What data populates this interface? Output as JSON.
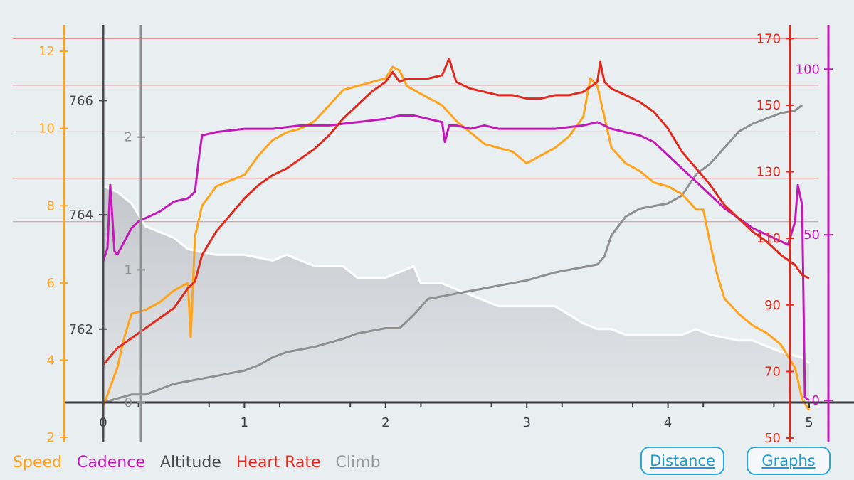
{
  "colors": {
    "speed": "#ffa31a",
    "cadence": "#c219b8",
    "altitude": "#4a4a4e",
    "heart_rate": "#e02a1e",
    "climb": "#8f8f8f",
    "background": "#e9eef1"
  },
  "legend": {
    "speed": "Speed",
    "cadence": "Cadence",
    "altitude": "Altitude",
    "heart_rate": "Heart Rate",
    "climb": "Climb"
  },
  "buttons": {
    "distance": "Distance",
    "graphs": "Graphs"
  },
  "chart_data": {
    "type": "line",
    "title": "",
    "xlabel": "",
    "x_range": [
      0,
      5
    ],
    "x_ticks": [
      "0",
      "1",
      "2",
      "3",
      "4",
      "5"
    ],
    "axes": {
      "speed": {
        "range": [
          2,
          12.5
        ],
        "ticks": [
          "2",
          "4",
          "6",
          "8",
          "10",
          "12"
        ]
      },
      "altitude": {
        "range": [
          761.3,
          767.2
        ],
        "ticks": [
          "762",
          "764",
          "766"
        ]
      },
      "climb": {
        "range": [
          0,
          2.4
        ],
        "ticks": [
          "0",
          "1",
          "2"
        ]
      },
      "heart_rate": {
        "range": [
          50,
          172
        ],
        "ticks": [
          "50",
          "70",
          "90",
          "110",
          "130",
          "150",
          "170"
        ]
      },
      "cadence": {
        "range": [
          0,
          108
        ],
        "ticks": [
          "0",
          "50",
          "100"
        ]
      }
    },
    "heart_rate_zone_lines": [
      170,
      156,
      142,
      128,
      115
    ],
    "series": [
      {
        "name": "Altitude",
        "axis": "altitude",
        "x": [
          0,
          0.1,
          0.2,
          0.3,
          0.5,
          0.6,
          0.8,
          1.0,
          1.2,
          1.3,
          1.5,
          1.7,
          1.8,
          2.0,
          2.2,
          2.25,
          2.4,
          2.6,
          2.8,
          3.0,
          3.2,
          3.4,
          3.5,
          3.6,
          3.7,
          3.8,
          4.0,
          4.1,
          4.2,
          4.3,
          4.5,
          4.6,
          4.8,
          4.95,
          5.0
        ],
        "values": [
          764.5,
          764.4,
          764.2,
          763.8,
          763.6,
          763.4,
          763.3,
          763.3,
          763.2,
          763.3,
          763.1,
          763.1,
          762.9,
          762.9,
          763.1,
          762.8,
          762.8,
          762.6,
          762.4,
          762.4,
          762.4,
          762.1,
          762.0,
          762.0,
          761.9,
          761.9,
          761.9,
          761.9,
          762.0,
          761.9,
          761.8,
          761.8,
          761.6,
          761.5,
          761.4
        ]
      },
      {
        "name": "Climb",
        "axis": "climb",
        "x": [
          0,
          0.2,
          0.3,
          0.5,
          0.8,
          1.0,
          1.1,
          1.2,
          1.3,
          1.5,
          1.7,
          1.8,
          2.0,
          2.1,
          2.2,
          2.3,
          2.5,
          2.7,
          2.8,
          3.0,
          3.2,
          3.4,
          3.5,
          3.55,
          3.6,
          3.7,
          3.8,
          4.0,
          4.1,
          4.2,
          4.3,
          4.4,
          4.5,
          4.6,
          4.7,
          4.8,
          4.9,
          4.95
        ],
        "values": [
          0,
          0.06,
          0.06,
          0.14,
          0.2,
          0.24,
          0.28,
          0.34,
          0.38,
          0.42,
          0.48,
          0.52,
          0.56,
          0.56,
          0.66,
          0.78,
          0.82,
          0.86,
          0.88,
          0.92,
          0.98,
          1.02,
          1.04,
          1.1,
          1.26,
          1.4,
          1.46,
          1.5,
          1.56,
          1.72,
          1.8,
          1.92,
          2.04,
          2.1,
          2.14,
          2.18,
          2.2,
          2.24
        ]
      },
      {
        "name": "Speed",
        "axis": "speed",
        "x": [
          0,
          0.05,
          0.1,
          0.15,
          0.2,
          0.3,
          0.4,
          0.5,
          0.6,
          0.62,
          0.65,
          0.7,
          0.8,
          1.0,
          1.1,
          1.2,
          1.3,
          1.4,
          1.5,
          1.6,
          1.7,
          1.8,
          1.9,
          2.0,
          2.05,
          2.1,
          2.15,
          2.2,
          2.3,
          2.4,
          2.5,
          2.6,
          2.7,
          2.8,
          2.9,
          3.0,
          3.1,
          3.2,
          3.3,
          3.4,
          3.45,
          3.5,
          3.55,
          3.6,
          3.7,
          3.8,
          3.9,
          4.0,
          4.1,
          4.15,
          4.2,
          4.25,
          4.3,
          4.35,
          4.4,
          4.5,
          4.6,
          4.7,
          4.8,
          4.85,
          4.9,
          4.95,
          5.0
        ],
        "values": [
          2.8,
          3.3,
          3.8,
          4.6,
          5.2,
          5.3,
          5.5,
          5.8,
          6.0,
          4.6,
          7.2,
          8.0,
          8.5,
          8.8,
          9.3,
          9.7,
          9.9,
          10.0,
          10.2,
          10.6,
          11.0,
          11.1,
          11.2,
          11.3,
          11.6,
          11.5,
          11.1,
          11.0,
          10.8,
          10.6,
          10.2,
          9.9,
          9.6,
          9.5,
          9.4,
          9.1,
          9.3,
          9.5,
          9.8,
          10.3,
          11.3,
          11.1,
          10.3,
          9.5,
          9.1,
          8.9,
          8.6,
          8.5,
          8.3,
          8.1,
          7.9,
          7.9,
          7.0,
          6.2,
          5.6,
          5.2,
          4.9,
          4.7,
          4.4,
          4.1,
          3.8,
          3.0,
          2.7
        ]
      },
      {
        "name": "Heart Rate",
        "axis": "heart_rate",
        "x": [
          0,
          0.1,
          0.2,
          0.3,
          0.4,
          0.5,
          0.55,
          0.6,
          0.65,
          0.7,
          0.8,
          0.9,
          1.0,
          1.1,
          1.2,
          1.3,
          1.4,
          1.5,
          1.6,
          1.7,
          1.8,
          1.9,
          2.0,
          2.05,
          2.1,
          2.15,
          2.2,
          2.3,
          2.4,
          2.45,
          2.5,
          2.6,
          2.7,
          2.8,
          2.9,
          3.0,
          3.1,
          3.2,
          3.3,
          3.4,
          3.5,
          3.52,
          3.55,
          3.6,
          3.7,
          3.8,
          3.9,
          4.0,
          4.1,
          4.2,
          4.3,
          4.4,
          4.5,
          4.6,
          4.7,
          4.8,
          4.9,
          4.95,
          5.0
        ],
        "values": [
          72,
          77,
          80,
          83,
          86,
          89,
          92,
          95,
          97,
          105,
          112,
          117,
          122,
          126,
          129,
          131,
          134,
          137,
          141,
          146,
          150,
          154,
          157,
          160,
          157,
          158,
          158,
          158,
          159,
          164,
          157,
          155,
          154,
          153,
          153,
          152,
          152,
          153,
          153,
          154,
          157,
          163,
          157,
          155,
          153,
          151,
          148,
          143,
          136,
          131,
          126,
          120,
          116,
          112,
          109,
          105,
          102,
          99,
          98
        ]
      },
      {
        "name": "Cadence",
        "axis": "cadence",
        "x": [
          0,
          0.03,
          0.05,
          0.08,
          0.1,
          0.15,
          0.2,
          0.25,
          0.3,
          0.4,
          0.5,
          0.6,
          0.65,
          0.68,
          0.7,
          0.8,
          1.0,
          1.2,
          1.4,
          1.6,
          1.8,
          2.0,
          2.1,
          2.2,
          2.3,
          2.4,
          2.42,
          2.45,
          2.5,
          2.6,
          2.7,
          2.8,
          3.0,
          3.2,
          3.4,
          3.5,
          3.6,
          3.7,
          3.8,
          3.9,
          4.0,
          4.1,
          4.2,
          4.3,
          4.4,
          4.5,
          4.6,
          4.7,
          4.8,
          4.85,
          4.9,
          4.92,
          4.95,
          4.97,
          5.0
        ],
        "values": [
          42,
          46,
          65,
          45,
          44,
          48,
          52,
          54,
          55,
          57,
          60,
          61,
          63,
          74,
          80,
          81,
          82,
          82,
          83,
          83,
          84,
          85,
          86,
          86,
          85,
          84,
          78,
          83,
          83,
          82,
          83,
          82,
          82,
          82,
          83,
          84,
          82,
          81,
          80,
          78,
          74,
          70,
          66,
          62,
          58,
          55,
          52,
          50,
          48,
          47,
          54,
          65,
          59,
          1,
          0
        ]
      }
    ]
  }
}
